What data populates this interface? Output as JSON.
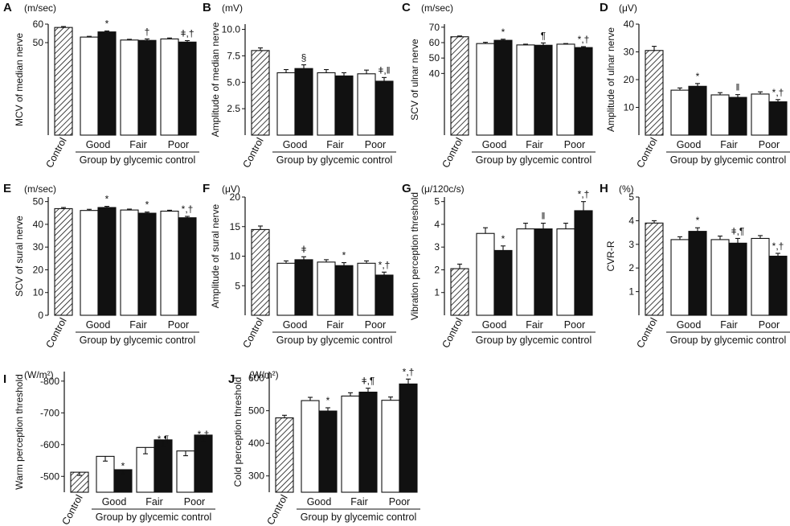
{
  "chart_data": [
    {
      "type": "bar",
      "panel": "A",
      "unit": "(m/sec)",
      "ylabel": "MCV of median nerve",
      "ylim": [
        0,
        60
      ],
      "ticks": [
        50,
        60
      ],
      "ytick_labels": [
        "50",
        "60"
      ],
      "categories": [
        "Control",
        "Good",
        "Fair",
        "Poor"
      ],
      "xlabel": "Group by glycemic control",
      "bars": [
        {
          "group": "Control",
          "fill": "hatched",
          "value": 58.2,
          "error": 0.5,
          "mark": ""
        },
        {
          "group": "Good",
          "fill": "white",
          "value": 53.0,
          "error": 0.4,
          "mark": ""
        },
        {
          "group": "Good",
          "fill": "black",
          "value": 55.8,
          "error": 0.5,
          "mark": "*"
        },
        {
          "group": "Fair",
          "fill": "white",
          "value": 51.4,
          "error": 0.4,
          "mark": ""
        },
        {
          "group": "Fair",
          "fill": "black",
          "value": 51.2,
          "error": 0.8,
          "mark": "†"
        },
        {
          "group": "Poor",
          "fill": "white",
          "value": 52.0,
          "error": 0.5,
          "mark": ""
        },
        {
          "group": "Poor",
          "fill": "black",
          "value": 50.3,
          "error": 0.8,
          "mark": "ǂ,†"
        }
      ]
    },
    {
      "type": "bar",
      "panel": "B",
      "unit": "(mV)",
      "ylabel": "Amplitude of median nerve",
      "ylim": [
        0,
        10.5
      ],
      "ticks": [
        2.5,
        5.0,
        7.5,
        10.0
      ],
      "ytick_labels": [
        "2.5",
        "5.0",
        "7.5",
        "10.0"
      ],
      "categories": [
        "Control",
        "Good",
        "Fair",
        "Poor"
      ],
      "xlabel": "Group by glycemic control",
      "bars": [
        {
          "group": "Control",
          "fill": "hatched",
          "value": 8.0,
          "error": 0.25,
          "mark": ""
        },
        {
          "group": "Good",
          "fill": "white",
          "value": 5.9,
          "error": 0.3,
          "mark": ""
        },
        {
          "group": "Good",
          "fill": "black",
          "value": 6.3,
          "error": 0.35,
          "mark": "§"
        },
        {
          "group": "Fair",
          "fill": "white",
          "value": 5.9,
          "error": 0.3,
          "mark": ""
        },
        {
          "group": "Fair",
          "fill": "black",
          "value": 5.6,
          "error": 0.3,
          "mark": ""
        },
        {
          "group": "Poor",
          "fill": "white",
          "value": 5.8,
          "error": 0.35,
          "mark": ""
        },
        {
          "group": "Poor",
          "fill": "black",
          "value": 5.1,
          "error": 0.35,
          "mark": "ǂ,ǁ"
        }
      ]
    },
    {
      "type": "bar",
      "panel": "C",
      "unit": "(m/sec)",
      "ylabel": "SCV of ulnar nerve",
      "ylim": [
        0,
        72
      ],
      "ticks": [
        40,
        50,
        60,
        70
      ],
      "ytick_labels": [
        "40",
        "50",
        "60",
        "70"
      ],
      "categories": [
        "Control",
        "Good",
        "Fair",
        "Poor"
      ],
      "xlabel": "Group by glycemic control",
      "bars": [
        {
          "group": "Control",
          "fill": "hatched",
          "value": 63.8,
          "error": 0.5,
          "mark": ""
        },
        {
          "group": "Good",
          "fill": "white",
          "value": 59.4,
          "error": 0.8,
          "mark": ""
        },
        {
          "group": "Good",
          "fill": "black",
          "value": 61.5,
          "error": 0.7,
          "mark": "*"
        },
        {
          "group": "Fair",
          "fill": "white",
          "value": 58.5,
          "error": 0.5,
          "mark": ""
        },
        {
          "group": "Fair",
          "fill": "black",
          "value": 58.3,
          "error": 1.5,
          "mark": "¶"
        },
        {
          "group": "Poor",
          "fill": "white",
          "value": 59.0,
          "error": 0.4,
          "mark": ""
        },
        {
          "group": "Poor",
          "fill": "black",
          "value": 56.8,
          "error": 0.6,
          "mark": "*,†"
        }
      ]
    },
    {
      "type": "bar",
      "panel": "D",
      "unit": "(μV)",
      "ylabel": "Amplitude of ulnar nerve",
      "ylim": [
        0,
        40
      ],
      "ticks": [
        10,
        20,
        30,
        40
      ],
      "ytick_labels": [
        "10",
        "20",
        "30",
        "40"
      ],
      "categories": [
        "Control",
        "Good",
        "Fair",
        "Poor"
      ],
      "xlabel": "Group by glycemic control",
      "bars": [
        {
          "group": "Control",
          "fill": "hatched",
          "value": 30.5,
          "error": 1.5,
          "mark": ""
        },
        {
          "group": "Good",
          "fill": "white",
          "value": 16.2,
          "error": 0.8,
          "mark": ""
        },
        {
          "group": "Good",
          "fill": "black",
          "value": 17.6,
          "error": 1.0,
          "mark": "*"
        },
        {
          "group": "Fair",
          "fill": "white",
          "value": 14.5,
          "error": 0.8,
          "mark": ""
        },
        {
          "group": "Fair",
          "fill": "black",
          "value": 13.6,
          "error": 1.0,
          "mark": "ǁ"
        },
        {
          "group": "Poor",
          "fill": "white",
          "value": 14.8,
          "error": 0.8,
          "mark": ""
        },
        {
          "group": "Poor",
          "fill": "black",
          "value": 12.0,
          "error": 0.8,
          "mark": "*,†"
        }
      ]
    },
    {
      "type": "bar",
      "panel": "E",
      "unit": "(m/sec)",
      "ylabel": "SCV of sural nerve",
      "ylim": [
        0,
        52
      ],
      "ticks": [
        0,
        10,
        20,
        30,
        40,
        50
      ],
      "ytick_labels": [
        "0",
        "10",
        "20",
        "30",
        "40",
        "50"
      ],
      "categories": [
        "Control",
        "Good",
        "Fair",
        "Poor"
      ],
      "xlabel": "Group by glycemic control",
      "bars": [
        {
          "group": "Control",
          "fill": "hatched",
          "value": 46.9,
          "error": 0.5,
          "mark": ""
        },
        {
          "group": "Good",
          "fill": "white",
          "value": 46.1,
          "error": 0.5,
          "mark": ""
        },
        {
          "group": "Good",
          "fill": "black",
          "value": 47.4,
          "error": 0.5,
          "mark": "*"
        },
        {
          "group": "Fair",
          "fill": "white",
          "value": 46.3,
          "error": 0.4,
          "mark": ""
        },
        {
          "group": "Fair",
          "fill": "black",
          "value": 44.9,
          "error": 0.5,
          "mark": "*"
        },
        {
          "group": "Poor",
          "fill": "white",
          "value": 45.8,
          "error": 0.4,
          "mark": ""
        },
        {
          "group": "Poor",
          "fill": "black",
          "value": 42.9,
          "error": 0.6,
          "mark": "*,†"
        }
      ]
    },
    {
      "type": "bar",
      "panel": "F",
      "unit": "(μV)",
      "ylabel": "Amplitude of sural nerve",
      "ylim": [
        0,
        20
      ],
      "ticks": [
        5,
        10,
        15,
        20
      ],
      "ytick_labels": [
        "5",
        "10",
        "15",
        "20"
      ],
      "categories": [
        "Control",
        "Good",
        "Fair",
        "Poor"
      ],
      "xlabel": "Group by glycemic control",
      "bars": [
        {
          "group": "Control",
          "fill": "hatched",
          "value": 14.5,
          "error": 0.6,
          "mark": ""
        },
        {
          "group": "Good",
          "fill": "white",
          "value": 8.8,
          "error": 0.4,
          "mark": ""
        },
        {
          "group": "Good",
          "fill": "black",
          "value": 9.4,
          "error": 0.5,
          "mark": "ǂ"
        },
        {
          "group": "Fair",
          "fill": "white",
          "value": 9.0,
          "error": 0.4,
          "mark": ""
        },
        {
          "group": "Fair",
          "fill": "black",
          "value": 8.4,
          "error": 0.5,
          "mark": "*"
        },
        {
          "group": "Poor",
          "fill": "white",
          "value": 8.8,
          "error": 0.4,
          "mark": ""
        },
        {
          "group": "Poor",
          "fill": "black",
          "value": 6.8,
          "error": 0.5,
          "mark": "*,†"
        }
      ]
    },
    {
      "type": "bar",
      "panel": "G",
      "unit": "(μ/120c/s)",
      "ylabel": "Vibration perception threshold",
      "ylim": [
        0,
        5.2
      ],
      "ticks": [
        1,
        2,
        3,
        4,
        5
      ],
      "ytick_labels": [
        "1",
        "2",
        "3",
        "4",
        "5"
      ],
      "categories": [
        "Control",
        "Good",
        "Fair",
        "Poor"
      ],
      "xlabel": "Group by glycemic control",
      "bars": [
        {
          "group": "Control",
          "fill": "hatched",
          "value": 2.05,
          "error": 0.2,
          "mark": ""
        },
        {
          "group": "Good",
          "fill": "white",
          "value": 3.6,
          "error": 0.25,
          "mark": ""
        },
        {
          "group": "Good",
          "fill": "black",
          "value": 2.85,
          "error": 0.2,
          "mark": "*"
        },
        {
          "group": "Fair",
          "fill": "white",
          "value": 3.8,
          "error": 0.25,
          "mark": ""
        },
        {
          "group": "Fair",
          "fill": "black",
          "value": 3.8,
          "error": 0.25,
          "mark": "ǁ"
        },
        {
          "group": "Poor",
          "fill": "white",
          "value": 3.8,
          "error": 0.25,
          "mark": ""
        },
        {
          "group": "Poor",
          "fill": "black",
          "value": 4.6,
          "error": 0.4,
          "mark": "*,†"
        }
      ]
    },
    {
      "type": "bar",
      "panel": "H",
      "unit": "(%)",
      "ylabel": "CVR-R",
      "ylim": [
        0,
        5
      ],
      "ticks": [
        1,
        2,
        3,
        4,
        5
      ],
      "ytick_labels": [
        "1",
        "2",
        "3",
        "4",
        "5"
      ],
      "categories": [
        "Control",
        "Good",
        "Fair",
        "Poor"
      ],
      "xlabel": "Group by glycemic control",
      "bars": [
        {
          "group": "Control",
          "fill": "hatched",
          "value": 3.9,
          "error": 0.1,
          "mark": ""
        },
        {
          "group": "Good",
          "fill": "white",
          "value": 3.2,
          "error": 0.12,
          "mark": ""
        },
        {
          "group": "Good",
          "fill": "black",
          "value": 3.55,
          "error": 0.15,
          "mark": "*"
        },
        {
          "group": "Fair",
          "fill": "white",
          "value": 3.2,
          "error": 0.15,
          "mark": ""
        },
        {
          "group": "Fair",
          "fill": "black",
          "value": 3.05,
          "error": 0.2,
          "mark": "ǂ,¶"
        },
        {
          "group": "Poor",
          "fill": "white",
          "value": 3.25,
          "error": 0.12,
          "mark": ""
        },
        {
          "group": "Poor",
          "fill": "black",
          "value": 2.5,
          "error": 0.12,
          "mark": "*,†"
        }
      ]
    },
    {
      "type": "bar",
      "panel": "I",
      "unit": "(W/m²)",
      "ylabel": "Warm perception threshold",
      "ylim": [
        -450,
        -830
      ],
      "ticks": [
        -500,
        -600,
        -700,
        -800
      ],
      "ytick_labels": [
        "-500",
        "-600",
        "-700",
        "-800"
      ],
      "categories": [
        "Control",
        "Good",
        "Fair",
        "Poor"
      ],
      "xlabel": "Group by glycemic control",
      "bars": [
        {
          "group": "Control",
          "fill": "hatched",
          "value": -513,
          "error": 10,
          "mark": ""
        },
        {
          "group": "Good",
          "fill": "white",
          "value": -563,
          "error": 15,
          "mark": ""
        },
        {
          "group": "Good",
          "fill": "black",
          "value": -521,
          "error": 12,
          "mark": "*"
        },
        {
          "group": "Fair",
          "fill": "white",
          "value": -591,
          "error": 20,
          "mark": ""
        },
        {
          "group": "Fair",
          "fill": "black",
          "value": -615,
          "error": 20,
          "mark": "*,¶"
        },
        {
          "group": "Poor",
          "fill": "white",
          "value": -580,
          "error": 15,
          "mark": ""
        },
        {
          "group": "Poor",
          "fill": "black",
          "value": -630,
          "error": 20,
          "mark": "*,†"
        }
      ]
    },
    {
      "type": "bar",
      "panel": "J",
      "unit": "(W/m²)",
      "ylabel": "Cold perception threshold",
      "ylim": [
        250,
        620
      ],
      "ticks": [
        300,
        400,
        500,
        600
      ],
      "ytick_labels": [
        "300",
        "400",
        "500",
        "600"
      ],
      "categories": [
        "Control",
        "Good",
        "Fair",
        "Poor"
      ],
      "xlabel": "Group by glycemic control",
      "bars": [
        {
          "group": "Control",
          "fill": "hatched",
          "value": 478,
          "error": 8,
          "mark": ""
        },
        {
          "group": "Good",
          "fill": "white",
          "value": 531,
          "error": 10,
          "mark": ""
        },
        {
          "group": "Good",
          "fill": "black",
          "value": 499,
          "error": 10,
          "mark": "*"
        },
        {
          "group": "Fair",
          "fill": "white",
          "value": 545,
          "error": 10,
          "mark": ""
        },
        {
          "group": "Fair",
          "fill": "black",
          "value": 557,
          "error": 12,
          "mark": "ǂ,¶"
        },
        {
          "group": "Poor",
          "fill": "white",
          "value": 532,
          "error": 10,
          "mark": ""
        },
        {
          "group": "Poor",
          "fill": "black",
          "value": 582,
          "error": 15,
          "mark": "*,†"
        }
      ]
    }
  ]
}
